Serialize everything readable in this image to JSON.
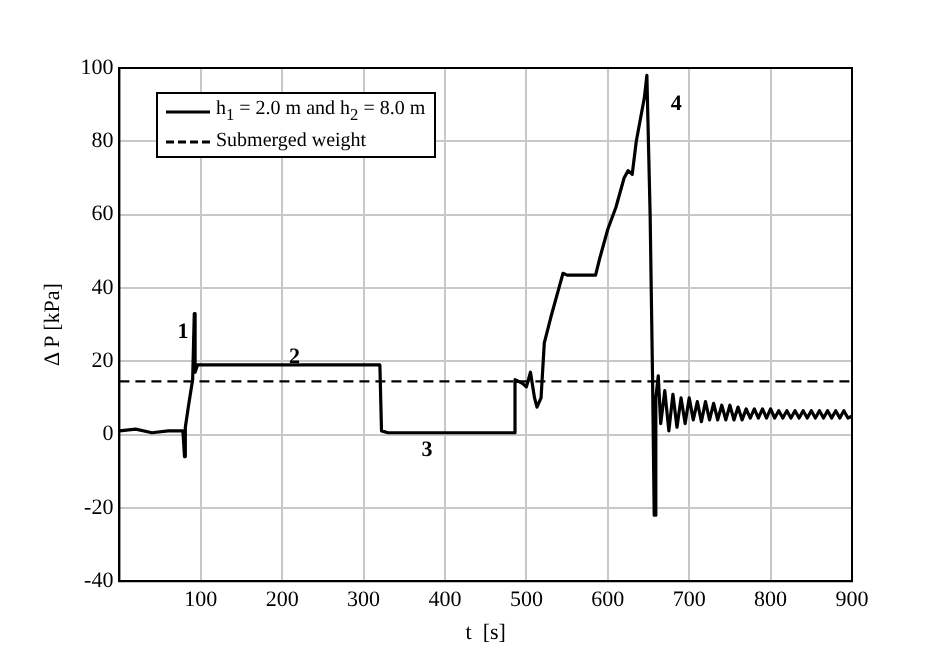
{
  "chart_data": {
    "type": "line",
    "xlabel": "t  [s]",
    "ylabel": "Δ P [kPa]",
    "xlim": [
      0,
      900
    ],
    "xticks": [
      100,
      200,
      300,
      400,
      500,
      600,
      700,
      800,
      900
    ],
    "ylim": [
      -40,
      100
    ],
    "yticks": [
      -40,
      -20,
      0,
      20,
      40,
      60,
      80,
      100
    ],
    "grid": true,
    "legend": "top left",
    "marker": "none",
    "series": [
      {
        "name": "h$_{1}$ = 2.0 m and h$_{2}$ = 8.0 m",
        "color": "#000000",
        "line_style": "solid",
        "x": [
          0,
          20,
          40,
          60,
          78,
          80,
          81,
          85,
          90,
          92,
          93,
          96,
          100,
          150,
          200,
          250,
          300,
          320,
          322,
          330,
          400,
          485,
          486,
          495,
          500,
          505,
          510,
          513,
          518,
          522,
          530,
          540,
          545,
          550,
          585,
          590,
          600,
          610,
          620,
          625,
          630,
          635,
          645,
          648,
          652,
          655,
          657,
          659,
          662,
          665,
          670,
          675,
          680,
          685,
          690,
          695,
          700,
          705,
          710,
          715,
          720,
          725,
          730,
          735,
          740,
          745,
          750,
          755,
          760,
          765,
          770,
          775,
          780,
          785,
          790,
          795,
          800,
          805,
          810,
          815,
          820,
          825,
          830,
          835,
          840,
          845,
          850,
          855,
          860,
          865,
          870,
          875,
          880,
          885,
          890,
          895,
          900
        ],
        "values": [
          1,
          1.5,
          0.5,
          1,
          1,
          -6,
          2,
          8,
          15,
          33,
          17,
          19,
          19,
          19,
          19,
          19,
          19,
          19,
          1,
          0.5,
          0.5,
          0.5,
          15,
          14,
          13,
          17,
          10,
          7.5,
          10,
          25,
          32,
          40,
          44,
          43.5,
          43.5,
          48,
          56,
          62,
          70,
          72,
          71,
          80,
          92,
          98,
          60,
          15,
          -22,
          10,
          16,
          3,
          12,
          1,
          11,
          2,
          10,
          3,
          10,
          4,
          9,
          3.5,
          9,
          4,
          8.5,
          4,
          8,
          4,
          8,
          4,
          7.5,
          4,
          7,
          4.5,
          7,
          4.5,
          7,
          4.5,
          7,
          4.5,
          6.5,
          4.5,
          6.5,
          4.5,
          6.5,
          4.5,
          6.5,
          4.5,
          6.5,
          4.5,
          6.5,
          4.5,
          6.5,
          4.5,
          6.5,
          4.5,
          6.5,
          4.5,
          5
        ]
      },
      {
        "name": "Submerged weight",
        "color": "#000000",
        "line_style": "dashed",
        "x": [
          0,
          900
        ],
        "values": [
          14.5,
          14.5
        ]
      }
    ],
    "annotations": [
      {
        "text": "1",
        "x": 78,
        "y": 28
      },
      {
        "text": "2",
        "x": 215,
        "y": 21
      },
      "3",
      "4"
    ]
  }
}
